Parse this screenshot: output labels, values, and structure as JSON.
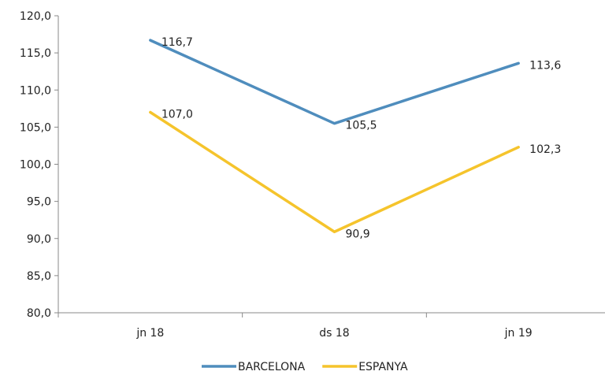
{
  "chart_data": {
    "type": "line",
    "categories": [
      "jn 18",
      "ds 18",
      "jn 19"
    ],
    "series": [
      {
        "name": "BARCELONA",
        "values": [
          116.7,
          105.5,
          113.6
        ],
        "labels": [
          "116,7",
          "105,5",
          "113,6"
        ],
        "color": "#4f8dbd"
      },
      {
        "name": "ESPANYA",
        "values": [
          107.0,
          90.9,
          102.3
        ],
        "labels": [
          "107,0",
          "90,9",
          "102,3"
        ],
        "color": "#f5c42c"
      }
    ],
    "ylim": [
      80,
      120
    ],
    "yticks": [
      80,
      85,
      90,
      95,
      100,
      105,
      110,
      115,
      120
    ],
    "ytick_labels": [
      "80,0",
      "85,0",
      "90,0",
      "95,0",
      "100,0",
      "105,0",
      "110,0",
      "115,0",
      "120,0"
    ],
    "grid": false,
    "legend": "bottom"
  }
}
